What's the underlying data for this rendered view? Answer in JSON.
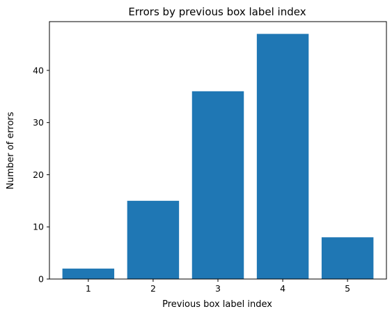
{
  "chart_data": {
    "type": "bar",
    "title": "Errors by previous box label index",
    "xlabel": "Previous box label index",
    "ylabel": "Number of errors",
    "categories": [
      "1",
      "2",
      "3",
      "4",
      "5"
    ],
    "values": [
      2,
      15,
      36,
      47,
      8
    ],
    "ylim": [
      0,
      49.35
    ],
    "yticks": [
      0,
      10,
      20,
      30,
      40
    ],
    "grid": false,
    "bar_color": "#1f77b4"
  }
}
